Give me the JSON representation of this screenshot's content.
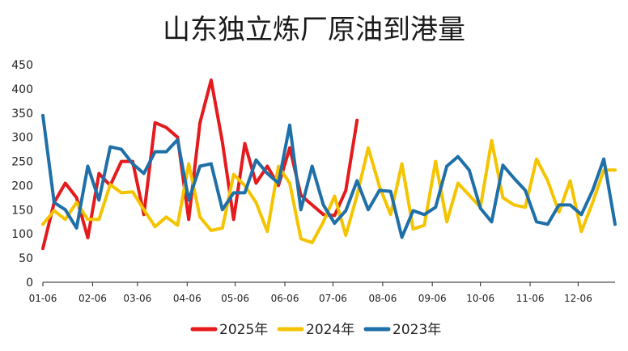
{
  "chart_data": {
    "type": "line",
    "title": "山东独立炼厂原油到港量",
    "xlabel": "",
    "ylabel": "",
    "ylim": [
      0,
      450
    ],
    "yticks": [
      0,
      50,
      100,
      150,
      200,
      250,
      300,
      350,
      400,
      450
    ],
    "xlim": [
      1,
      52
    ],
    "xticks": [
      {
        "label": "01-06",
        "week": 1
      },
      {
        "label": "02-06",
        "week": 5.43
      },
      {
        "label": "03-06",
        "week": 9.43
      },
      {
        "label": "04-06",
        "week": 13.86
      },
      {
        "label": "05-06",
        "week": 18.14
      },
      {
        "label": "06-06",
        "week": 22.57
      },
      {
        "label": "07-06",
        "week": 26.86
      },
      {
        "label": "08-06",
        "week": 31.29
      },
      {
        "label": "09-06",
        "week": 35.71
      },
      {
        "label": "10-06",
        "week": 40
      },
      {
        "label": "11-06",
        "week": 44.43
      },
      {
        "label": "12-06",
        "week": 48.71
      }
    ],
    "grid": false,
    "legend_position": "bottom",
    "series": [
      {
        "name": "2025年",
        "color": "#e41a1c",
        "x": [
          1,
          2,
          3,
          4,
          5,
          6,
          7,
          8,
          9,
          10,
          11,
          12,
          13,
          14,
          15,
          16,
          17,
          18,
          19,
          20,
          21,
          22,
          23,
          24,
          25,
          26,
          27,
          28,
          29,
          30
        ],
        "values": [
          70,
          165,
          205,
          175,
          92,
          225,
          200,
          250,
          250,
          140,
          330,
          320,
          300,
          130,
          330,
          418,
          290,
          130,
          287,
          205,
          240,
          200,
          278,
          180,
          160,
          140,
          138,
          190,
          335,
          null
        ]
      },
      {
        "name": "2024年",
        "color": "#f5c400",
        "x": [
          1,
          2,
          3,
          4,
          5,
          6,
          7,
          8,
          9,
          10,
          11,
          12,
          13,
          14,
          15,
          16,
          17,
          18,
          19,
          20,
          21,
          22,
          23,
          24,
          25,
          26,
          27,
          28,
          29,
          30,
          31,
          32,
          33,
          34,
          35,
          36,
          37,
          38,
          39,
          40,
          41,
          42,
          43,
          44,
          45,
          46,
          47,
          48,
          49,
          50,
          51,
          52
        ],
        "values": [
          120,
          148,
          130,
          165,
          130,
          130,
          202,
          185,
          187,
          150,
          115,
          135,
          118,
          245,
          135,
          107,
          112,
          223,
          200,
          165,
          105,
          240,
          205,
          90,
          82,
          125,
          178,
          97,
          180,
          278,
          198,
          140,
          245,
          110,
          118,
          250,
          125,
          205,
          180,
          155,
          293,
          175,
          160,
          155,
          255,
          210,
          145,
          210,
          105,
          165,
          232,
          232
        ]
      },
      {
        "name": "2023年",
        "color": "#1f6fa8",
        "x": [
          1,
          2,
          3,
          4,
          5,
          6,
          7,
          8,
          9,
          10,
          11,
          12,
          13,
          14,
          15,
          16,
          17,
          18,
          19,
          20,
          21,
          22,
          23,
          24,
          25,
          26,
          27,
          28,
          29,
          30,
          31,
          32,
          33,
          34,
          35,
          36,
          37,
          38,
          39,
          40,
          41,
          42,
          43,
          44,
          45,
          46,
          47,
          48,
          49,
          50,
          51,
          52
        ],
        "values": [
          345,
          165,
          150,
          112,
          240,
          170,
          280,
          275,
          245,
          225,
          270,
          270,
          295,
          170,
          240,
          245,
          150,
          185,
          185,
          253,
          225,
          205,
          325,
          150,
          240,
          160,
          122,
          148,
          210,
          150,
          190,
          188,
          93,
          148,
          140,
          155,
          240,
          260,
          232,
          153,
          125,
          242,
          215,
          190,
          125,
          120,
          160,
          160,
          140,
          190,
          255,
          120
        ]
      }
    ]
  }
}
